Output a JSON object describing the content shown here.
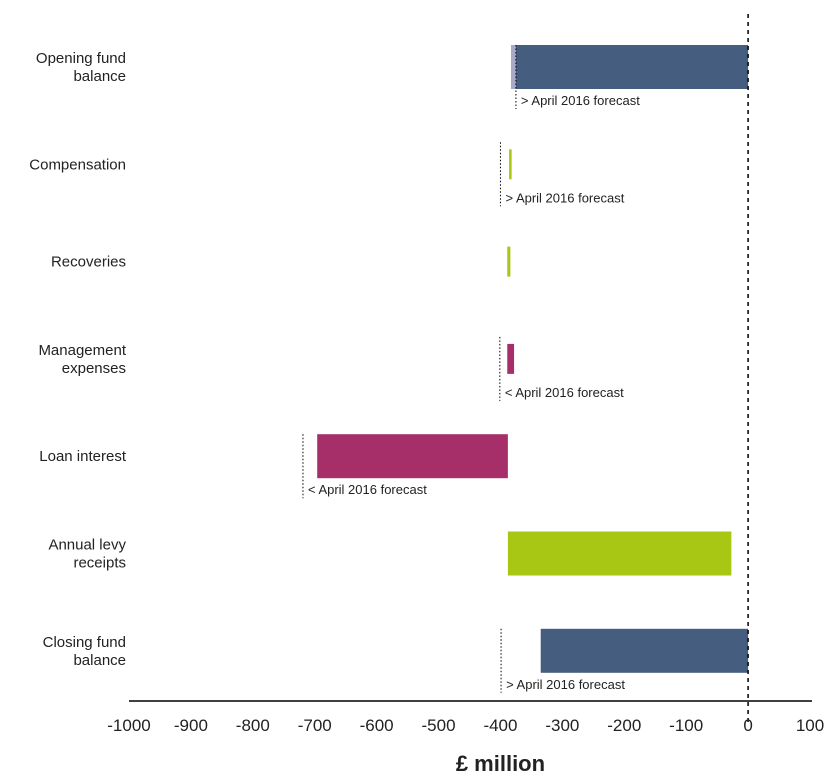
{
  "chart_data": {
    "type": "bar",
    "subtype": "waterfall",
    "xlabel": "£ million",
    "xlim": [
      -1000,
      100
    ],
    "ticks": [
      -1000,
      -900,
      -800,
      -700,
      -600,
      -500,
      -400,
      -300,
      -200,
      -100,
      0,
      100
    ],
    "tick_labels": [
      "-1000",
      "-900",
      "-800",
      "-700",
      "-600",
      "-500",
      "-400",
      "-300",
      "-200",
      "-100",
      "0",
      "100"
    ],
    "reference_line": 0,
    "bars": [
      {
        "category": [
          "Opening fund",
          "balance"
        ],
        "start": -383,
        "end": 0,
        "color": "#455e80",
        "forecast": {
          "value": -375,
          "label": "> April 2016 forecast"
        },
        "overlap": {
          "from": -383,
          "to": -375,
          "color": "#a9aac6"
        }
      },
      {
        "category": [
          "Compensation"
        ],
        "start": -386,
        "end": -383,
        "color": "#a8c614",
        "forecast": {
          "value": -400,
          "label": "> April 2016 forecast"
        }
      },
      {
        "category": [
          "Recoveries"
        ],
        "start": -389,
        "end": -384,
        "color": "#a8c614"
      },
      {
        "category": [
          "Management",
          "expenses"
        ],
        "start": -389,
        "end": -378,
        "color": "#a72f69",
        "forecast": {
          "value": -401,
          "label": "< April 2016 forecast"
        }
      },
      {
        "category": [
          "Loan interest"
        ],
        "start": -696,
        "end": -388,
        "color": "#a72f69",
        "forecast": {
          "value": -719,
          "label": "< April 2016 forecast"
        }
      },
      {
        "category": [
          "Annual levy",
          "receipts"
        ],
        "start": -388,
        "end": -27,
        "color": "#a8c614"
      },
      {
        "category": [
          "Closing fund",
          "balance"
        ],
        "start": -335,
        "end": 0,
        "color": "#455e80",
        "forecast": {
          "value": -399,
          "label": "> April 2016 forecast"
        }
      }
    ]
  }
}
